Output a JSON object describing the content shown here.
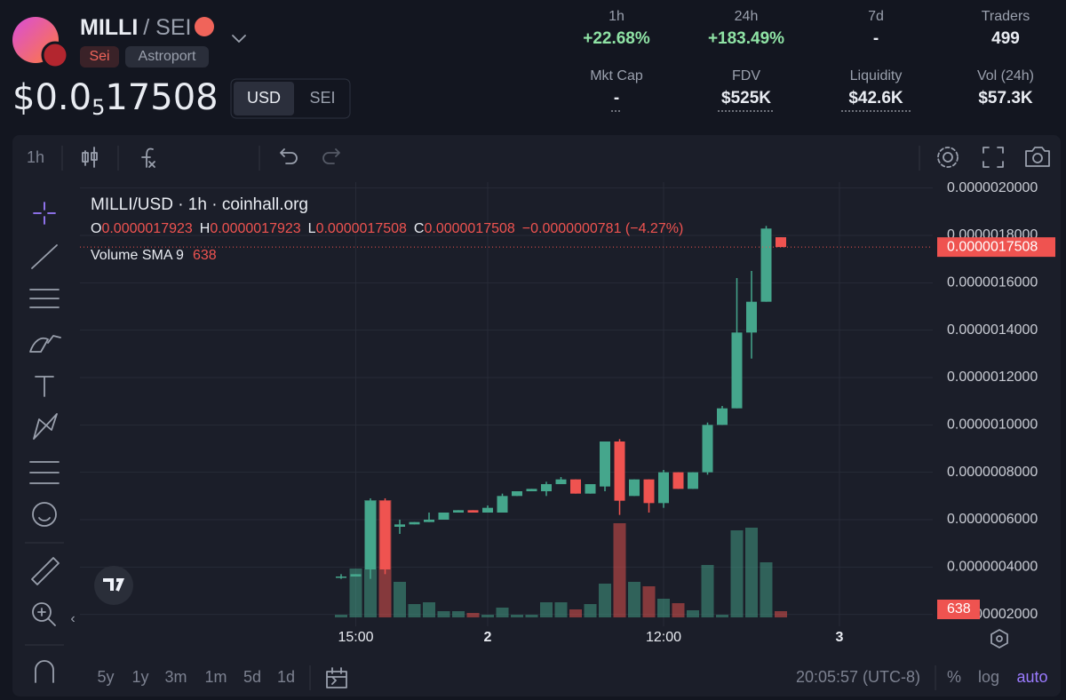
{
  "header": {
    "name": "MILLI",
    "quote": "/ SEI",
    "tags": [
      "Sei",
      "Astroport"
    ],
    "price_prefix": "$0.0",
    "price_zeros": "5",
    "price_digits": "17508",
    "currencies": [
      "USD",
      "SEI"
    ]
  },
  "stats": [
    {
      "label": "1h",
      "value": "+22.68%"
    },
    {
      "label": "24h",
      "value": "+183.49%"
    },
    {
      "label": "7d",
      "value": "-"
    },
    {
      "label": "Traders",
      "value": "499"
    },
    {
      "label": "Mkt Cap",
      "value": "-"
    },
    {
      "label": "FDV",
      "value": "$525K"
    },
    {
      "label": "Liquidity",
      "value": "$42.6K"
    },
    {
      "label": "Vol (24h)",
      "value": "$57.3K"
    }
  ],
  "toolbar": {
    "interval": "1h",
    "indicators": "Indicators"
  },
  "footer": {
    "ranges": [
      "5y",
      "1y",
      "3m",
      "1m",
      "5d",
      "1d"
    ],
    "time": "20:05:57 (UTC-8)",
    "percent": "%",
    "log": "log",
    "auto": "auto"
  },
  "chart_data": {
    "type": "candlestick",
    "title": "MILLI/USD · 1h · coinhall.org",
    "legend": {
      "o": "O",
      "h": "H",
      "l": "L",
      "c": "C",
      "change": "−0.0000000781 (−4.27%)",
      "volume_label": "Volume SMA 9"
    },
    "volume_sma": 638,
    "up_color": "#45a68c",
    "down_color": "#ef5350",
    "open": [
      3.6e-07,
      3.6e-07,
      3.9e-07,
      6.8e-07,
      5.7e-07,
      5.8e-07,
      5.9e-07,
      6e-07,
      6.3e-07,
      6.4e-07,
      6.3e-07,
      6.3e-07,
      7e-07,
      7.2e-07,
      7.2e-07,
      7.5e-07,
      7.7e-07,
      7.1e-07,
      7.4e-07,
      9.3e-07,
      7e-07,
      7.7e-07,
      6.7e-07,
      8e-07,
      7.3e-07,
      8e-07,
      1e-06,
      1.07e-06,
      1.39e-06,
      1.52e-06,
      1.7923e-06
    ],
    "high": [
      3.7e-07,
      3.7e-07,
      6.9e-07,
      6.9e-07,
      6e-07,
      5.9e-07,
      6.3e-07,
      6.3e-07,
      6.4e-07,
      6.4e-07,
      6.6e-07,
      7.1e-07,
      7.2e-07,
      7.3e-07,
      7.6e-07,
      7.8e-07,
      7.7e-07,
      7.5e-07,
      9.3e-07,
      9.4e-07,
      7.7e-07,
      7.7e-07,
      8.1e-07,
      8e-07,
      8e-07,
      1.01e-06,
      1.08e-06,
      1.62e-06,
      1.65e-06,
      1.84e-06,
      1.7923e-06
    ],
    "low": [
      3.5e-07,
      3.6e-07,
      3.5e-07,
      3.7e-07,
      5.4e-07,
      5.8e-07,
      5.9e-07,
      6e-07,
      6.3e-07,
      6.3e-07,
      6.3e-07,
      6.3e-07,
      7e-07,
      7.2e-07,
      7e-07,
      7.5e-07,
      7.1e-07,
      7.1e-07,
      7.2e-07,
      6.2e-07,
      7e-07,
      6.3e-07,
      6.5e-07,
      7.3e-07,
      7.3e-07,
      7.9e-07,
      1e-06,
      1.07e-06,
      1.28e-06,
      1.52e-06,
      1.7508e-06
    ],
    "close": [
      3.6e-07,
      3.7e-07,
      6.8e-07,
      3.9e-07,
      5.8e-07,
      5.9e-07,
      6e-07,
      6.3e-07,
      6.4e-07,
      6.3e-07,
      6.5e-07,
      7e-07,
      7.2e-07,
      7.3e-07,
      7.5e-07,
      7.7e-07,
      7.1e-07,
      7.5e-07,
      9.3e-07,
      6.8e-07,
      7.7e-07,
      6.7e-07,
      8e-07,
      7.3e-07,
      8e-07,
      1e-06,
      1.07e-06,
      1.39e-06,
      1.52e-06,
      1.8289e-06,
      1.7508e-06
    ],
    "volume": [
      3,
      55,
      132,
      132,
      40,
      15,
      17,
      7,
      7,
      5,
      3,
      11,
      3,
      3,
      17,
      17,
      9,
      15,
      38,
      106,
      40,
      35,
      21,
      16,
      8,
      59,
      3,
      98,
      101,
      62,
      7
    ],
    "xticks": [
      {
        "value": 1,
        "label": "15:00"
      },
      {
        "value": 10,
        "label": "2"
      },
      {
        "value": 22,
        "label": "12:00"
      },
      {
        "value": 34,
        "label": "3"
      }
    ],
    "ylim": [
      1.5e-07,
      2.025e-06
    ],
    "yticks": [
      {
        "value": 2e-07,
        "label": "0.0000002000"
      },
      {
        "value": 4e-07,
        "label": "0.0000004000"
      },
      {
        "value": 6e-07,
        "label": "0.0000006000"
      },
      {
        "value": 8e-07,
        "label": "0.0000008000"
      },
      {
        "value": 1e-06,
        "label": "0.0000010000"
      },
      {
        "value": 1.2e-06,
        "label": "0.0000012000"
      },
      {
        "value": 1.4e-06,
        "label": "0.0000014000"
      },
      {
        "value": 1.6e-06,
        "label": "0.0000016000"
      },
      {
        "value": 1.8e-06,
        "label": "0.0000018000"
      },
      {
        "value": 2e-06,
        "label": "0.0000020000"
      }
    ],
    "grid": true
  }
}
